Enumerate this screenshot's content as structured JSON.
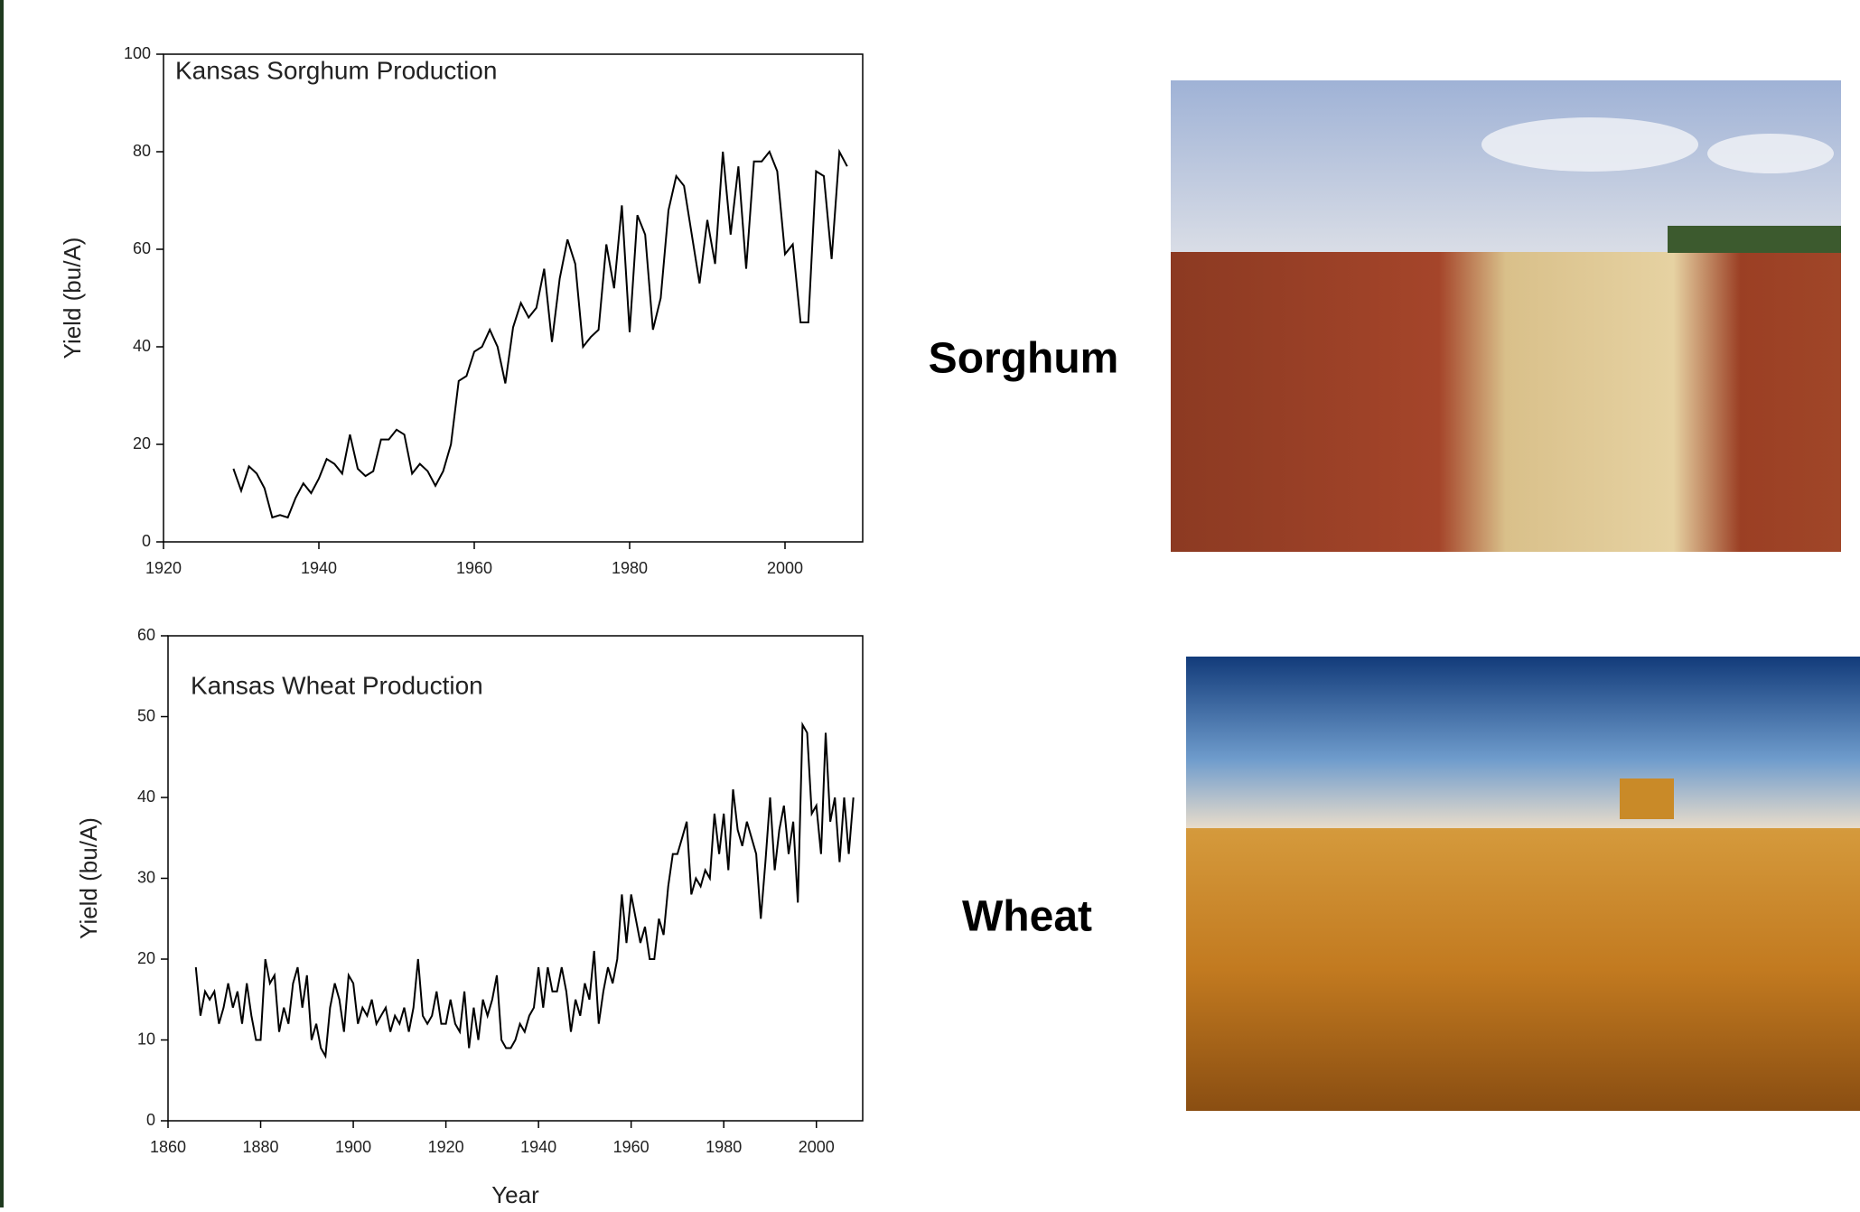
{
  "chart_data": [
    {
      "type": "line",
      "title": "Kansas Sorghum Production",
      "y_label": "Yield (bu/A)",
      "x": [
        1929,
        1930,
        1931,
        1932,
        1933,
        1934,
        1935,
        1936,
        1937,
        1938,
        1939,
        1940,
        1941,
        1942,
        1943,
        1944,
        1945,
        1946,
        1947,
        1948,
        1949,
        1950,
        1951,
        1952,
        1953,
        1954,
        1955,
        1956,
        1957,
        1958,
        1959,
        1960,
        1961,
        1962,
        1963,
        1964,
        1965,
        1966,
        1967,
        1968,
        1969,
        1970,
        1971,
        1972,
        1973,
        1974,
        1975,
        1976,
        1977,
        1978,
        1979,
        1980,
        1981,
        1982,
        1983,
        1984,
        1985,
        1986,
        1987,
        1988,
        1989,
        1990,
        1991,
        1992,
        1993,
        1994,
        1995,
        1996,
        1997,
        1998,
        1999,
        2000,
        2001,
        2002,
        2003,
        2004,
        2005,
        2006,
        2007,
        2008
      ],
      "values": [
        15,
        10.5,
        15.5,
        14,
        11,
        5,
        5.5,
        5,
        9,
        12,
        10,
        13,
        17,
        16,
        14,
        22,
        15,
        13.5,
        14.5,
        21,
        21,
        23,
        22,
        14,
        16,
        14.5,
        11.5,
        14.5,
        20,
        33,
        34,
        39,
        40,
        43.5,
        40,
        32.5,
        44,
        49,
        46,
        48,
        56,
        41,
        54,
        62,
        57,
        40,
        42,
        43.5,
        61,
        52,
        69,
        43,
        67,
        63,
        43.5,
        50,
        68,
        75,
        73,
        63,
        53,
        66,
        57,
        80,
        63,
        77,
        56,
        78,
        78,
        80,
        76,
        59,
        61,
        45,
        45,
        76,
        75,
        58,
        80,
        77
      ],
      "color": "#000000",
      "xlim": [
        1920,
        2010
      ],
      "xticks": [
        1920,
        1940,
        1960,
        1980,
        2000
      ],
      "ylim": [
        0,
        100
      ],
      "yticks": [
        0,
        20,
        40,
        60,
        80,
        100
      ]
    },
    {
      "type": "line",
      "title": "Kansas Wheat Production",
      "y_label": "Yield (bu/A)",
      "x_label": "Year",
      "x": [
        1866,
        1867,
        1868,
        1869,
        1870,
        1871,
        1872,
        1873,
        1874,
        1875,
        1876,
        1877,
        1878,
        1879,
        1880,
        1881,
        1882,
        1883,
        1884,
        1885,
        1886,
        1887,
        1888,
        1889,
        1890,
        1891,
        1892,
        1893,
        1894,
        1895,
        1896,
        1897,
        1898,
        1899,
        1900,
        1901,
        1902,
        1903,
        1904,
        1905,
        1906,
        1907,
        1908,
        1909,
        1910,
        1911,
        1912,
        1913,
        1914,
        1915,
        1916,
        1917,
        1918,
        1919,
        1920,
        1921,
        1922,
        1923,
        1924,
        1925,
        1926,
        1927,
        1928,
        1929,
        1930,
        1931,
        1932,
        1933,
        1934,
        1935,
        1936,
        1937,
        1938,
        1939,
        1940,
        1941,
        1942,
        1943,
        1944,
        1945,
        1946,
        1947,
        1948,
        1949,
        1950,
        1951,
        1952,
        1953,
        1954,
        1955,
        1956,
        1957,
        1958,
        1959,
        1960,
        1961,
        1962,
        1963,
        1964,
        1965,
        1966,
        1967,
        1968,
        1969,
        1970,
        1971,
        1972,
        1973,
        1974,
        1975,
        1976,
        1977,
        1978,
        1979,
        1980,
        1981,
        1982,
        1983,
        1984,
        1985,
        1986,
        1987,
        1988,
        1989,
        1990,
        1991,
        1992,
        1993,
        1994,
        1995,
        1996,
        1997,
        1998,
        1999,
        2000,
        2001,
        2002,
        2003,
        2004,
        2005,
        2006,
        2007,
        2008
      ],
      "values": [
        19,
        13,
        16,
        15,
        16,
        12,
        14,
        17,
        14,
        16,
        12,
        17,
        13,
        10,
        10,
        20,
        17,
        18,
        11,
        14,
        12,
        17,
        19,
        14,
        18,
        10,
        12,
        9,
        8,
        14,
        17,
        15,
        11,
        18,
        17,
        12,
        14,
        13,
        15,
        12,
        13,
        14,
        11,
        13,
        12,
        14,
        11,
        14,
        20,
        13,
        12,
        13,
        16,
        12,
        12,
        15,
        12,
        11,
        16,
        9,
        14,
        10,
        15,
        13,
        15,
        18,
        10,
        9,
        9,
        10,
        12,
        11,
        13,
        14,
        19,
        14,
        19,
        16,
        16,
        19,
        16,
        11,
        15,
        13,
        17,
        15,
        21,
        12,
        16,
        19,
        17,
        20,
        28,
        22,
        28,
        25,
        22,
        24,
        20,
        20,
        25,
        23,
        29,
        33,
        33,
        35,
        37,
        28,
        30,
        29,
        31,
        30,
        38,
        33,
        38,
        31,
        41,
        36,
        34,
        37,
        35,
        33,
        25,
        32,
        40,
        31,
        36,
        39,
        33,
        37,
        27,
        49,
        48,
        38,
        39,
        33,
        48,
        37,
        40,
        32,
        40,
        33,
        40
      ],
      "color": "#000000",
      "xlim": [
        1860,
        2010
      ],
      "xticks": [
        1860,
        1880,
        1900,
        1920,
        1940,
        1960,
        1980,
        2000
      ],
      "ylim": [
        0,
        60
      ],
      "yticks": [
        0,
        10,
        20,
        30,
        40,
        50,
        60
      ]
    }
  ],
  "crop_labels": [
    "Sorghum",
    "Wheat"
  ]
}
